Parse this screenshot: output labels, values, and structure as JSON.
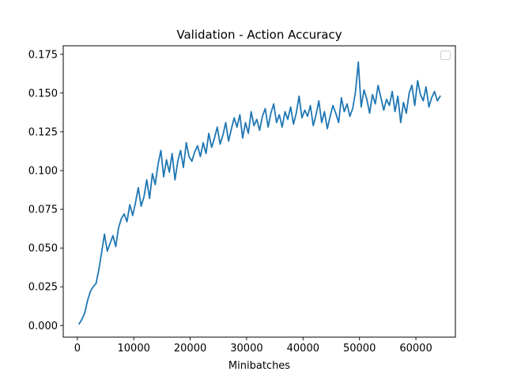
{
  "chart_data": {
    "type": "line",
    "title": "Validation - Action Accuracy",
    "xlabel": "Minibatches",
    "ylabel": "",
    "xlim": [
      -2500,
      67000
    ],
    "ylim": [
      -0.0075,
      0.1805
    ],
    "xticks": [
      0,
      10000,
      20000,
      30000,
      40000,
      50000,
      60000
    ],
    "xtick_labels": [
      "0",
      "10000",
      "20000",
      "30000",
      "40000",
      "50000",
      "60000"
    ],
    "yticks": [
      0.0,
      0.025,
      0.05,
      0.075,
      0.1,
      0.125,
      0.15,
      0.175
    ],
    "ytick_labels": [
      "0.000",
      "0.025",
      "0.050",
      "0.075",
      "0.100",
      "0.125",
      "0.150",
      "0.175"
    ],
    "grid": false,
    "legend": "top-right (empty)",
    "series_color": "#1f77b4",
    "series": [
      {
        "x": [
          300,
          800,
          1300,
          1800,
          2300,
          2800,
          3300,
          3800,
          4300,
          4800,
          5300,
          5800,
          6300,
          6800,
          7300,
          7800,
          8300,
          8800,
          9300,
          9800,
          10300,
          10800,
          11300,
          11800,
          12300,
          12800,
          13300,
          13800,
          14300,
          14800,
          15300,
          15800,
          16300,
          16800,
          17300,
          17800,
          18300,
          18800,
          19300,
          19800,
          20300,
          20800,
          21300,
          21800,
          22300,
          22800,
          23300,
          23800,
          24300,
          24800,
          25300,
          25800,
          26300,
          26800,
          27300,
          27800,
          28300,
          28800,
          29300,
          29800,
          30300,
          30800,
          31300,
          31800,
          32300,
          32800,
          33300,
          33800,
          34300,
          34800,
          35300,
          35800,
          36300,
          36800,
          37300,
          37800,
          38300,
          38800,
          39300,
          39800,
          40300,
          40800,
          41300,
          41800,
          42300,
          42800,
          43300,
          43800,
          44300,
          44800,
          45300,
          45800,
          46300,
          46800,
          47300,
          47800,
          48300,
          48800,
          49300,
          49800,
          50300,
          50800,
          51300,
          51800,
          52300,
          52800,
          53300,
          53800,
          54300,
          54800,
          55300,
          55800,
          56300,
          56800,
          57300,
          57800,
          58300,
          58800,
          59300,
          59800,
          60300,
          60800,
          61300,
          61800,
          62300,
          62800,
          63300,
          63800,
          64300
        ],
        "y": [
          0.001,
          0.004,
          0.008,
          0.016,
          0.022,
          0.025,
          0.027,
          0.036,
          0.047,
          0.059,
          0.048,
          0.053,
          0.058,
          0.051,
          0.063,
          0.069,
          0.072,
          0.067,
          0.078,
          0.071,
          0.079,
          0.089,
          0.077,
          0.083,
          0.094,
          0.082,
          0.098,
          0.091,
          0.104,
          0.113,
          0.096,
          0.107,
          0.099,
          0.111,
          0.094,
          0.106,
          0.113,
          0.102,
          0.118,
          0.109,
          0.106,
          0.112,
          0.116,
          0.109,
          0.118,
          0.111,
          0.124,
          0.115,
          0.121,
          0.128,
          0.117,
          0.123,
          0.131,
          0.119,
          0.127,
          0.134,
          0.128,
          0.136,
          0.121,
          0.131,
          0.124,
          0.138,
          0.129,
          0.133,
          0.126,
          0.135,
          0.14,
          0.128,
          0.137,
          0.143,
          0.131,
          0.136,
          0.128,
          0.138,
          0.133,
          0.141,
          0.13,
          0.137,
          0.148,
          0.134,
          0.139,
          0.135,
          0.142,
          0.129,
          0.136,
          0.145,
          0.131,
          0.138,
          0.127,
          0.135,
          0.142,
          0.137,
          0.131,
          0.147,
          0.138,
          0.143,
          0.135,
          0.14,
          0.151,
          0.17,
          0.141,
          0.152,
          0.146,
          0.137,
          0.149,
          0.143,
          0.155,
          0.147,
          0.139,
          0.146,
          0.142,
          0.151,
          0.138,
          0.148,
          0.131,
          0.144,
          0.137,
          0.15,
          0.155,
          0.142,
          0.158,
          0.149,
          0.145,
          0.154,
          0.141,
          0.147,
          0.151,
          0.145,
          0.148
        ]
      }
    ]
  }
}
